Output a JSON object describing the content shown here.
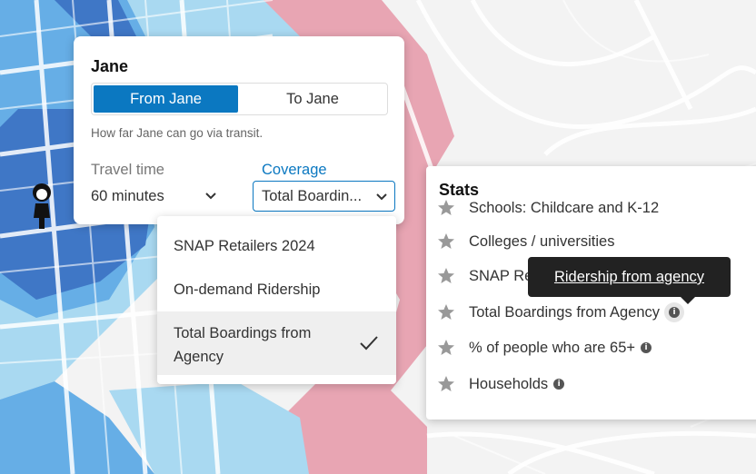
{
  "panel": {
    "title": "Jane",
    "tabs": [
      "From Jane",
      "To Jane"
    ],
    "description": "How far Jane can go via transit.",
    "travel_time": {
      "label": "Travel time",
      "value": "60 minutes"
    },
    "coverage": {
      "label": "Coverage",
      "value": "Total Boardin..."
    }
  },
  "dropdown": {
    "options": [
      "SNAP Retailers 2024",
      "On-demand Ridership",
      "Total Boardings from Agency"
    ]
  },
  "stats": {
    "title": "Stats",
    "items": [
      "Schools: Childcare and K-12",
      "Colleges / universities",
      "SNAP Retailers 2024",
      "Total Boardings from Agency",
      "% of people who are 65+",
      "Households"
    ]
  },
  "tooltip": "Ridership from agency"
}
